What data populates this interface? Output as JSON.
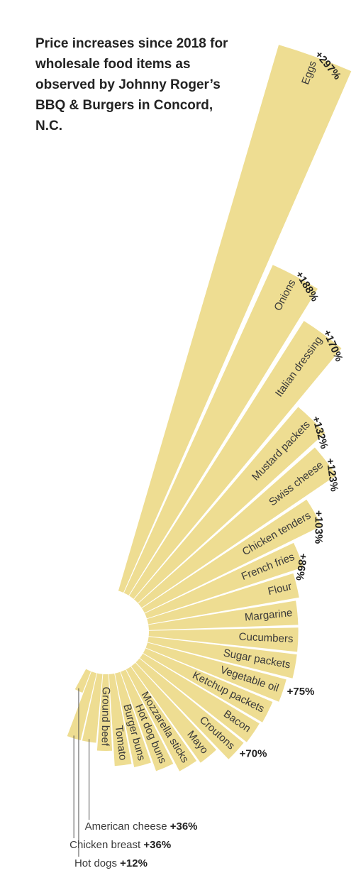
{
  "chart_data": {
    "type": "radial-bar",
    "title": "Price increases since 2018 for wholesale food items as observed by Johnny Roger’s BBQ & Burgers in Concord, N.C.",
    "color": "#eedd92",
    "categories": [
      "Eggs",
      "Onions",
      "Italian dressing",
      "Mustard packets",
      "Swiss cheese",
      "Chicken tenders",
      "French fries",
      "Flour",
      "Margarine",
      "Cucumbers",
      "Sugar packets",
      "Vegetable oil",
      "Ketchup packets",
      "Bacon",
      "Croutons",
      "Mayo",
      "Mozzarella sticks",
      "Hot dog buns",
      "Burger buns",
      "Tomato",
      "Ground beef",
      "American cheese",
      "Chicken breast",
      "Hot dogs"
    ],
    "values": [
      297,
      188,
      170,
      132,
      123,
      103,
      86,
      80,
      78,
      78,
      78,
      75,
      72,
      71,
      70,
      62,
      60,
      55,
      50,
      48,
      40,
      36,
      36,
      12
    ],
    "value_labels": [
      "+297%",
      "+188%",
      "+170%",
      "+132%",
      "+123%",
      "+103%",
      "+86%",
      null,
      null,
      null,
      null,
      "+75%",
      null,
      null,
      "+70%",
      null,
      null,
      null,
      null,
      null,
      null,
      "+36%",
      "+36%",
      "+12%"
    ]
  }
}
